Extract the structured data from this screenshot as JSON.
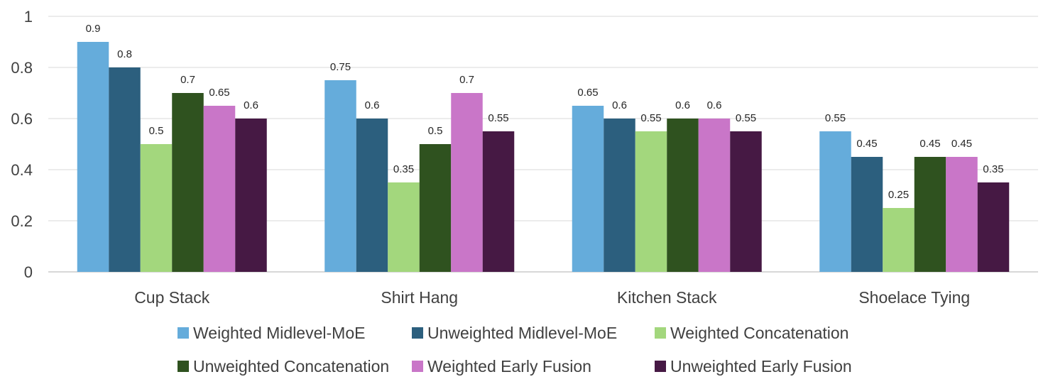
{
  "chart_data": {
    "type": "bar",
    "title": "",
    "xlabel": "",
    "ylabel": "",
    "ylim": [
      0,
      1
    ],
    "yticks": [
      0,
      0.2,
      0.4,
      0.6,
      0.8,
      1
    ],
    "ytick_labels": [
      "0",
      "0.2",
      "0.4",
      "0.6",
      "0.8",
      "1"
    ],
    "grid": true,
    "legend_position": "bottom",
    "categories": [
      "Cup Stack",
      "Shirt Hang",
      "Kitchen Stack",
      "Shoelace Tying"
    ],
    "series": [
      {
        "name": "Weighted Midlevel-MoE",
        "color": "#65acdb",
        "values": [
          0.9,
          0.75,
          0.65,
          0.55
        ],
        "labels": [
          "0.9",
          "0.75",
          "0.65",
          "0.55"
        ]
      },
      {
        "name": "Unweighted Midlevel-MoE",
        "color": "#2c5f7e",
        "values": [
          0.8,
          0.6,
          0.6,
          0.45
        ],
        "labels": [
          "0.8",
          "0.6",
          "0.6",
          "0.45"
        ]
      },
      {
        "name": "Weighted Concatenation",
        "color": "#a3d77d",
        "values": [
          0.5,
          0.35,
          0.55,
          0.25
        ],
        "labels": [
          "0.5",
          "0.35",
          "0.55",
          "0.25"
        ]
      },
      {
        "name": "Unweighted Concatenation",
        "color": "#2f521f",
        "values": [
          0.7,
          0.5,
          0.6,
          0.45
        ],
        "labels": [
          "0.7",
          "0.5",
          "0.6",
          "0.45"
        ]
      },
      {
        "name": "Weighted Early Fusion",
        "color": "#c976c8",
        "values": [
          0.65,
          0.7,
          0.6,
          0.45
        ],
        "labels": [
          "0.65",
          "0.7",
          "0.6",
          "0.45"
        ]
      },
      {
        "name": "Unweighted  Early Fusion",
        "color": "#461944",
        "values": [
          0.6,
          0.55,
          0.55,
          0.35
        ],
        "labels": [
          "0.6",
          "0.55",
          "0.55",
          "0.35"
        ]
      }
    ]
  }
}
